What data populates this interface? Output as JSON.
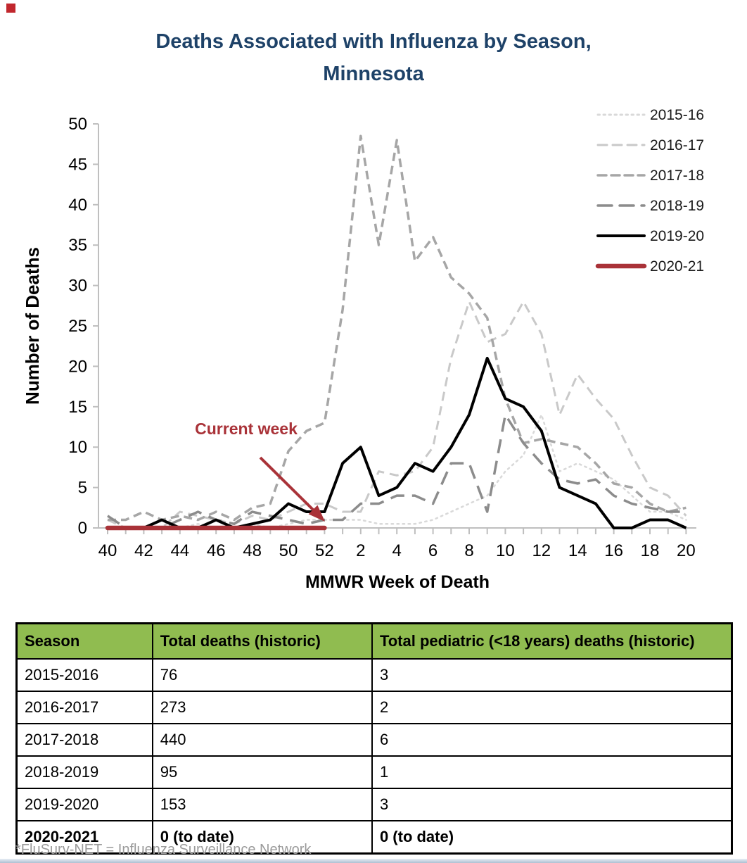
{
  "page": {
    "marker_color": "#c1272d"
  },
  "header": {
    "title_line1": "Deaths Associated with Influenza by Season,",
    "title_line2": "Minnesota",
    "color": "#1e4268"
  },
  "chart_data": {
    "type": "line",
    "title": "Deaths Associated with Influenza by Season, Minnesota",
    "xlabel": "MMWR Week of Death",
    "ylabel": "Number of Deaths",
    "ylim": [
      0,
      50
    ],
    "ytick_step": 5,
    "grid": false,
    "legend_position": "top-right",
    "axis_color": "#bfbfbf",
    "categories": [
      "40",
      "41",
      "42",
      "43",
      "44",
      "45",
      "46",
      "47",
      "48",
      "49",
      "50",
      "51",
      "52",
      "1",
      "2",
      "3",
      "4",
      "5",
      "6",
      "7",
      "8",
      "9",
      "10",
      "11",
      "12",
      "13",
      "14",
      "15",
      "16",
      "17",
      "18",
      "19",
      "20"
    ],
    "x_tick_labels": [
      "40",
      "42",
      "44",
      "46",
      "48",
      "50",
      "52",
      "2",
      "4",
      "6",
      "8",
      "10",
      "12",
      "14",
      "16",
      "18",
      "20"
    ],
    "series": [
      {
        "name": "2015-16",
        "color": "#d9d9d9",
        "style": "dotted",
        "width": 2.5,
        "dash": [
          2.5,
          5.5
        ],
        "values": [
          0,
          0,
          0,
          0,
          0,
          0.5,
          0,
          0,
          0.5,
          0,
          0.5,
          1,
          1,
          1,
          1,
          0.5,
          0.5,
          0.5,
          1,
          2,
          3,
          4,
          7,
          9,
          14,
          7,
          8,
          7,
          6,
          4,
          2,
          2,
          1
        ]
      },
      {
        "name": "2016-17",
        "color": "#c9c9c9",
        "style": "dashed",
        "width": 3,
        "dash": [
          13,
          8
        ],
        "values": [
          1,
          0,
          0,
          0,
          2,
          1.5,
          1,
          0.5,
          1.5,
          1,
          2,
          3,
          3,
          2,
          2,
          7,
          6.5,
          7,
          10,
          21,
          28,
          23,
          24,
          28,
          24,
          14,
          19,
          16,
          13.5,
          9,
          5,
          4,
          1.5
        ]
      },
      {
        "name": "2017-18",
        "color": "#a6a6a6",
        "style": "dashed",
        "width": 3.5,
        "dash": [
          12,
          7
        ],
        "values": [
          1,
          1,
          2,
          1,
          1.5,
          1,
          2,
          1,
          2.5,
          3,
          9.5,
          12,
          13,
          27,
          48.5,
          35,
          48,
          33,
          36,
          31,
          29,
          26,
          16,
          10.5,
          11,
          10.5,
          10,
          8,
          5.5,
          5,
          3,
          2,
          2.5
        ]
      },
      {
        "name": "2018-19",
        "color": "#8c8c8c",
        "style": "long-dash",
        "width": 3.5,
        "dash": [
          20,
          11
        ],
        "values": [
          1.5,
          0,
          0,
          0,
          1,
          2,
          1,
          0.5,
          2,
          1.5,
          1,
          0.5,
          1,
          1,
          3,
          3,
          4,
          4,
          3,
          8,
          8,
          2,
          14,
          10.5,
          8,
          6,
          5.5,
          6,
          4,
          3,
          2.5,
          2,
          2
        ]
      },
      {
        "name": "2019-20",
        "color": "#000000",
        "style": "solid",
        "width": 4,
        "dash": null,
        "values": [
          0,
          0,
          0,
          1,
          0,
          0,
          1,
          0,
          0.5,
          1,
          3,
          2,
          2,
          8,
          10,
          4,
          5,
          8,
          7,
          10,
          14,
          21,
          16,
          15,
          12,
          5,
          4,
          3,
          0,
          0,
          1,
          1,
          0
        ]
      },
      {
        "name": "2020-21",
        "color": "#a93238",
        "style": "solid",
        "width": 6.5,
        "dash": null,
        "values": [
          0,
          0,
          0,
          0,
          0,
          0,
          0,
          0,
          0,
          0,
          0,
          0,
          0,
          null,
          null,
          null,
          null,
          null,
          null,
          null,
          null,
          null,
          null,
          null,
          null,
          null,
          null,
          null,
          null,
          null,
          null,
          null,
          null
        ]
      }
    ],
    "annotation": {
      "label": "Current week",
      "color": "#a93238",
      "points_to_week": "52"
    }
  },
  "table": {
    "header_bg": "#90bc50",
    "headers": [
      "Season",
      "Total deaths (historic)",
      "Total pediatric (<18 years) deaths (historic)"
    ],
    "rows": [
      {
        "cells": [
          "2015-2016",
          "76",
          "3"
        ],
        "bold": false
      },
      {
        "cells": [
          "2016-2017",
          "273",
          "2"
        ],
        "bold": false
      },
      {
        "cells": [
          "2017-2018",
          "440",
          "6"
        ],
        "bold": false
      },
      {
        "cells": [
          "2018-2019",
          "95",
          "1"
        ],
        "bold": false
      },
      {
        "cells": [
          "2019-2020",
          "153",
          "3"
        ],
        "bold": false
      },
      {
        "cells": [
          "2020-2021",
          "0 (to date)",
          "0 (to date)"
        ],
        "bold": true
      }
    ]
  },
  "footnote": "*FluSurv-NET = Influenza Surveillance Network"
}
